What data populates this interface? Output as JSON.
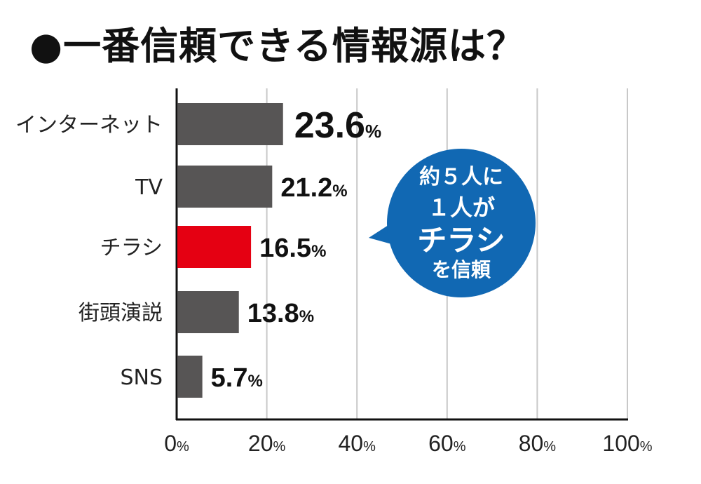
{
  "title": "●一番信頼できる情報源は？",
  "chart_data": {
    "type": "bar",
    "orientation": "horizontal",
    "title": "一番信頼できる情報源は？",
    "categories": [
      "インターネット",
      "TV",
      "チラシ",
      "街頭演説",
      "SNS"
    ],
    "values": [
      23.6,
      21.2,
      16.5,
      13.8,
      5.7
    ],
    "value_labels": [
      "23.6",
      "21.2",
      "16.5",
      "13.8",
      "5.7"
    ],
    "unit": "%",
    "xlim": [
      0,
      100
    ],
    "xticks": [
      0,
      20,
      40,
      60,
      80,
      100
    ],
    "grid": true,
    "highlight_category": "チラシ",
    "annotation": [
      "約５人に",
      "１人が",
      "チラシ",
      "を信頼"
    ]
  },
  "colors": {
    "bar": "#575555",
    "highlight": "#e50012",
    "bubble": "#1168b3",
    "bubble_accent": "#ffe600",
    "grid": "#c8c8c8",
    "axis": "#111111"
  }
}
